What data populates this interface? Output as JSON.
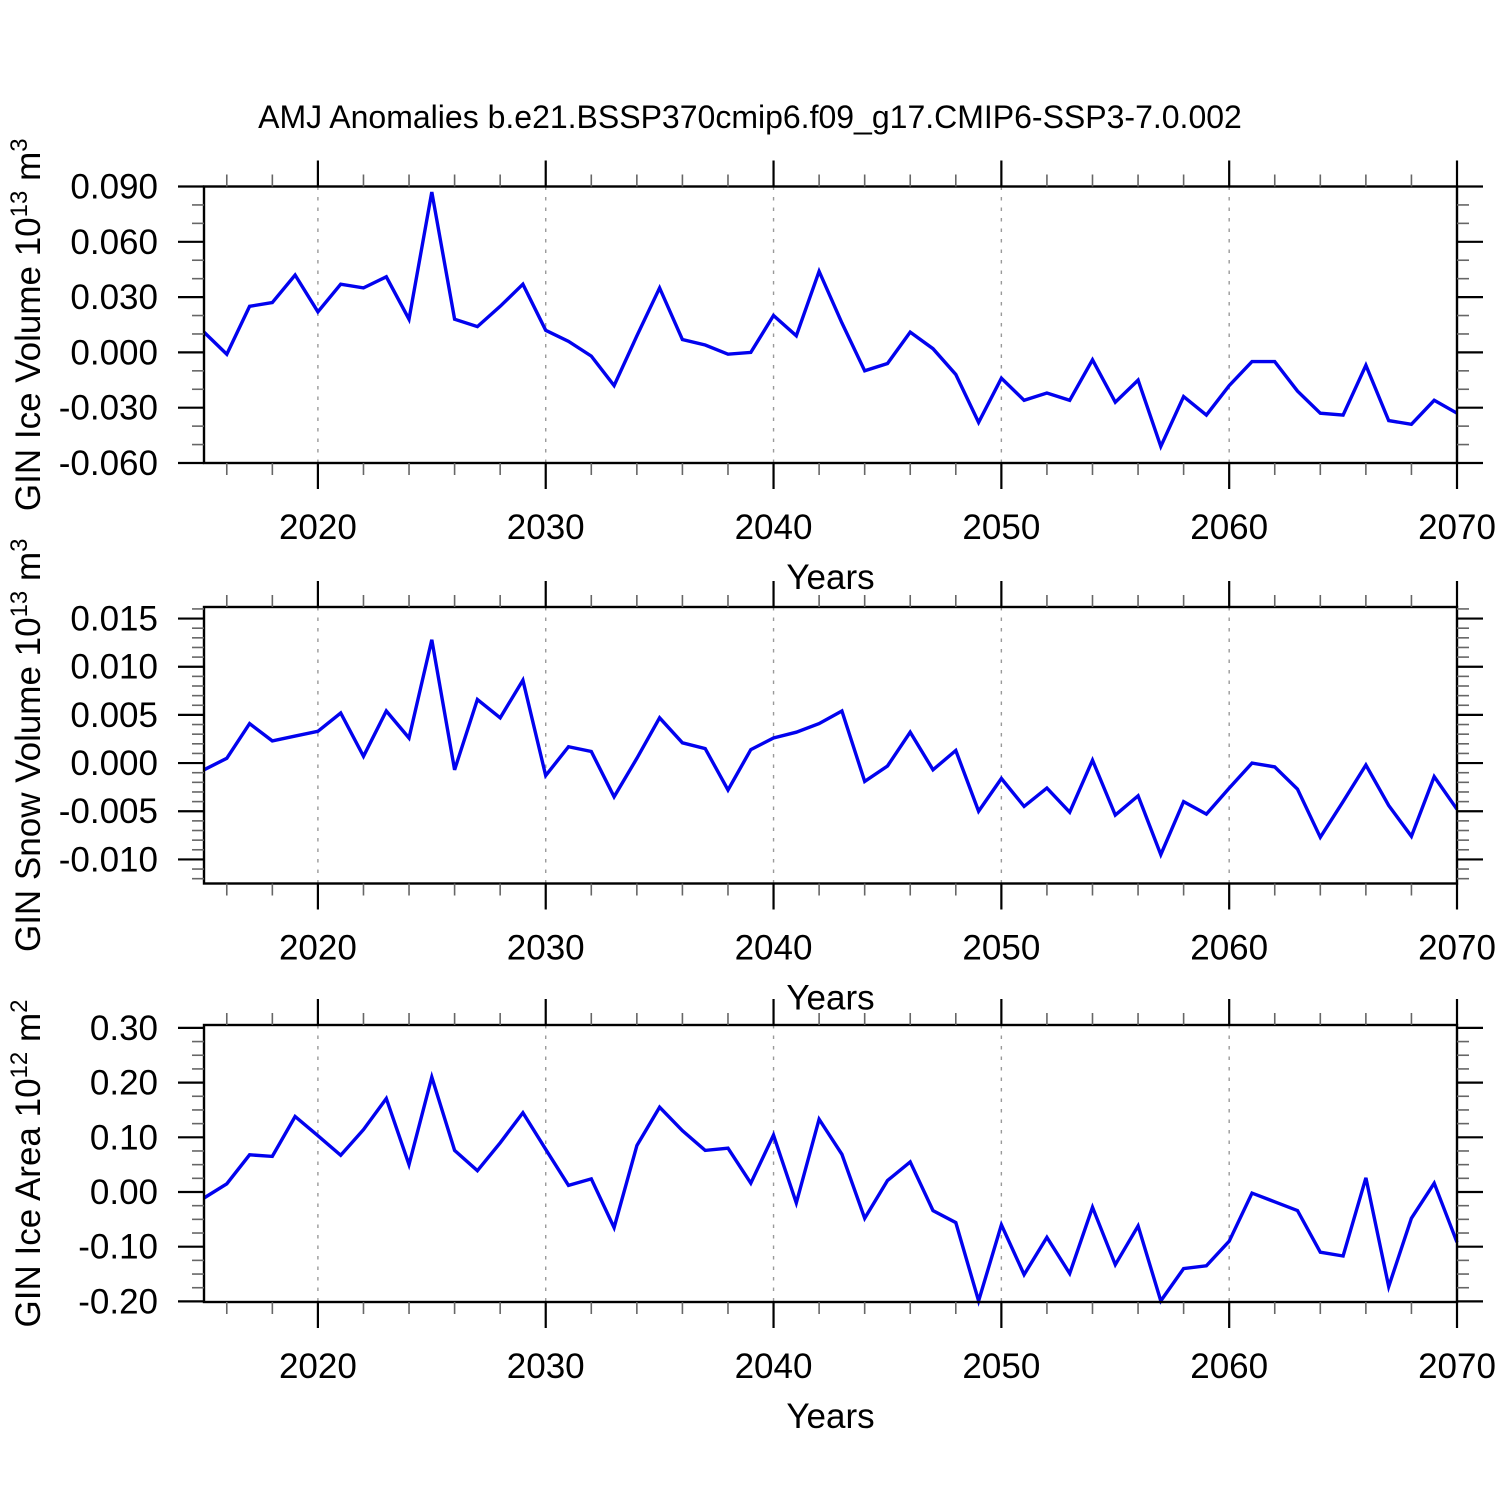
{
  "title": "AMJ Anomalies b.e21.BSSP370cmip6.f09_g17.CMIP6-SSP3-7.0.002",
  "styles": {
    "line_color": "#0202ee",
    "axis_color": "#000000",
    "major_tick_color": "#000000",
    "minor_tick_color": "#666666",
    "gridline_color": "#999999",
    "background": "#ffffff"
  },
  "x_axis": {
    "label": "Years",
    "range": [
      2015,
      2070
    ],
    "major_ticks": {
      "values": [
        2020,
        2030,
        2040,
        2050,
        2060,
        2070
      ],
      "labels": [
        "2020",
        "2030",
        "2040",
        "2050",
        "2060",
        "2070"
      ]
    },
    "minor_step": 2,
    "gridline_years": [
      2020,
      2030,
      2040,
      2050,
      2060
    ]
  },
  "chart_data": [
    {
      "type": "line",
      "name": "ice-volume",
      "ylabel": "GIN Ice Volume 10^13 m^3",
      "ylabel_parts": [
        {
          "t": "GIN Ice Volume 10"
        },
        {
          "t": "13",
          "sup": true
        },
        {
          "t": " m"
        },
        {
          "t": "3",
          "sup": true
        }
      ],
      "xlabel": "Years",
      "ylim": [
        -0.06,
        0.09
      ],
      "yticks": {
        "values": [
          0.09,
          0.06,
          0.03,
          0.0,
          -0.03,
          -0.06
        ],
        "labels": [
          "0.090",
          "0.060",
          "0.030",
          "0.000",
          "-0.030",
          "-0.060"
        ],
        "minor_step": 0.01
      },
      "x": [
        2015,
        2016,
        2017,
        2018,
        2019,
        2020,
        2021,
        2022,
        2023,
        2024,
        2025,
        2026,
        2027,
        2028,
        2029,
        2030,
        2031,
        2032,
        2033,
        2034,
        2035,
        2036,
        2037,
        2038,
        2039,
        2040,
        2041,
        2042,
        2043,
        2044,
        2045,
        2046,
        2047,
        2048,
        2049,
        2050,
        2051,
        2052,
        2053,
        2054,
        2055,
        2056,
        2057,
        2058,
        2059,
        2060,
        2061,
        2062,
        2063,
        2064,
        2065,
        2066,
        2067,
        2068,
        2069,
        2070
      ],
      "y": [
        0.011,
        -0.001,
        0.025,
        0.027,
        0.042,
        0.022,
        0.037,
        0.035,
        0.041,
        0.018,
        0.087,
        0.018,
        0.014,
        0.025,
        0.037,
        0.012,
        0.006,
        -0.002,
        -0.018,
        0.009,
        0.035,
        0.007,
        0.004,
        -0.001,
        0.0,
        0.02,
        0.009,
        0.044,
        0.016,
        -0.01,
        -0.006,
        0.011,
        0.002,
        -0.012,
        -0.038,
        -0.014,
        -0.026,
        -0.022,
        -0.026,
        -0.004,
        -0.027,
        -0.015,
        -0.051,
        -0.024,
        -0.034,
        -0.018,
        -0.005,
        -0.005,
        -0.021,
        -0.033,
        -0.034,
        -0.007,
        -0.037,
        -0.039,
        -0.026,
        -0.033
      ]
    },
    {
      "type": "line",
      "name": "snow-volume",
      "ylabel": "GIN Snow Volume 10^13 m^3",
      "ylabel_parts": [
        {
          "t": "GIN Snow Volume 10"
        },
        {
          "t": "13",
          "sup": true
        },
        {
          "t": " m"
        },
        {
          "t": "3",
          "sup": true
        }
      ],
      "xlabel": "Years",
      "ylim": [
        -0.0125,
        0.0162
      ],
      "yticks": {
        "values": [
          0.015,
          0.01,
          0.005,
          0.0,
          -0.005,
          -0.01
        ],
        "labels": [
          "0.015",
          "0.010",
          "0.005",
          "0.000",
          "-0.005",
          "-0.010"
        ],
        "minor_step": 0.001
      },
      "x": [
        2015,
        2016,
        2017,
        2018,
        2019,
        2020,
        2021,
        2022,
        2023,
        2024,
        2025,
        2026,
        2027,
        2028,
        2029,
        2030,
        2031,
        2032,
        2033,
        2034,
        2035,
        2036,
        2037,
        2038,
        2039,
        2040,
        2041,
        2042,
        2043,
        2044,
        2045,
        2046,
        2047,
        2048,
        2049,
        2050,
        2051,
        2052,
        2053,
        2054,
        2055,
        2056,
        2057,
        2058,
        2059,
        2060,
        2061,
        2062,
        2063,
        2064,
        2065,
        2066,
        2067,
        2068,
        2069,
        2070
      ],
      "y": [
        -0.0007,
        0.0005,
        0.0041,
        0.0023,
        0.0028,
        0.0033,
        0.0052,
        0.0007,
        0.0054,
        0.0026,
        0.0128,
        -0.0007,
        0.0066,
        0.0047,
        0.0086,
        -0.0013,
        0.0017,
        0.0012,
        -0.0035,
        0.0005,
        0.0047,
        0.0021,
        0.0015,
        -0.0028,
        0.0014,
        0.0026,
        0.0032,
        0.0041,
        0.0054,
        -0.0019,
        -0.0003,
        0.0032,
        -0.0007,
        0.0013,
        -0.005,
        -0.0016,
        -0.0045,
        -0.0026,
        -0.0051,
        0.0003,
        -0.0054,
        -0.0034,
        -0.0095,
        -0.004,
        -0.0053,
        -0.0026,
        0.0,
        -0.0004,
        -0.0027,
        -0.0077,
        -0.004,
        -0.0002,
        -0.0044,
        -0.0076,
        -0.0014,
        -0.0048
      ]
    },
    {
      "type": "line",
      "name": "ice-area",
      "ylabel": "GIN Ice Area 10^12 m^2",
      "ylabel_parts": [
        {
          "t": "GIN Ice Area 10"
        },
        {
          "t": "12",
          "sup": true
        },
        {
          "t": " m"
        },
        {
          "t": "2",
          "sup": true
        }
      ],
      "xlabel": "Years",
      "ylim": [
        -0.2011,
        0.3053
      ],
      "yticks": {
        "values": [
          0.3,
          0.2,
          0.1,
          0.0,
          -0.1,
          -0.2
        ],
        "labels": [
          "0.30",
          "0.20",
          "0.10",
          "0.00",
          "-0.10",
          "-0.20"
        ],
        "minor_step": 0.025
      },
      "x": [
        2015,
        2016,
        2017,
        2018,
        2019,
        2020,
        2021,
        2022,
        2023,
        2024,
        2025,
        2026,
        2027,
        2028,
        2029,
        2030,
        2031,
        2032,
        2033,
        2034,
        2035,
        2036,
        2037,
        2038,
        2039,
        2040,
        2041,
        2042,
        2043,
        2044,
        2045,
        2046,
        2047,
        2048,
        2049,
        2050,
        2051,
        2052,
        2053,
        2054,
        2055,
        2056,
        2057,
        2058,
        2059,
        2060,
        2061,
        2062,
        2063,
        2064,
        2065,
        2066,
        2067,
        2068,
        2069,
        2070
      ],
      "y": [
        -0.011,
        0.015,
        0.068,
        0.065,
        0.138,
        0.103,
        0.067,
        0.114,
        0.171,
        0.05,
        0.21,
        0.076,
        0.039,
        0.09,
        0.145,
        0.078,
        0.012,
        0.024,
        -0.065,
        0.085,
        0.155,
        0.112,
        0.076,
        0.08,
        0.016,
        0.104,
        -0.02,
        0.133,
        0.069,
        -0.048,
        0.021,
        0.055,
        -0.034,
        -0.056,
        -0.199,
        -0.06,
        -0.151,
        -0.083,
        -0.149,
        -0.028,
        -0.133,
        -0.062,
        -0.199,
        -0.14,
        -0.135,
        -0.09,
        -0.002,
        -0.018,
        -0.034,
        -0.11,
        -0.117,
        0.026,
        -0.173,
        -0.048,
        0.016,
        -0.092
      ]
    }
  ]
}
